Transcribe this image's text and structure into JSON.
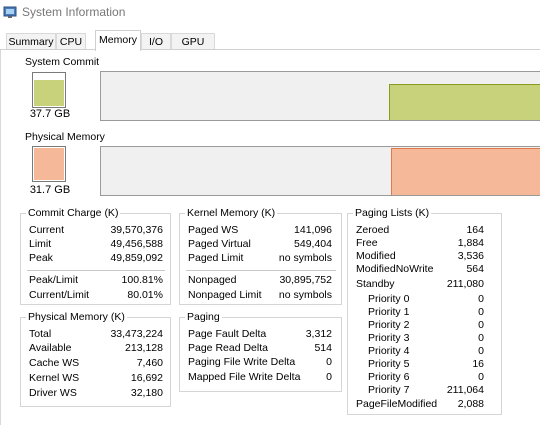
{
  "window": {
    "title": "System Information",
    "icon": "system-information-icon"
  },
  "tabs": [
    {
      "label": "Summary"
    },
    {
      "label": "CPU"
    },
    {
      "label": "Memory",
      "active": true
    },
    {
      "label": "I/O"
    },
    {
      "label": "GPU"
    }
  ],
  "system_commit": {
    "label": "System Commit",
    "value": "37.7 GB",
    "color": "#c8d27a",
    "line_color": "#8a9a1e"
  },
  "physical_memory_graph": {
    "label": "Physical Memory",
    "value": "31.7 GB",
    "color": "#f5b99a",
    "line_color": "#e07a4a"
  },
  "commit_charge": {
    "title": "Commit Charge (K)",
    "rows": [
      {
        "label": "Current",
        "value": "39,570,376"
      },
      {
        "label": "Limit",
        "value": "49,456,588"
      },
      {
        "label": "Peak",
        "value": "49,859,092"
      }
    ],
    "rows2": [
      {
        "label": "Peak/Limit",
        "value": "100.81%"
      },
      {
        "label": "Current/Limit",
        "value": "80.01%"
      }
    ]
  },
  "kernel_memory": {
    "title": "Kernel Memory (K)",
    "rows": [
      {
        "label": "Paged WS",
        "value": "141,096"
      },
      {
        "label": "Paged Virtual",
        "value": "549,404"
      },
      {
        "label": "Paged Limit",
        "value": "no symbols"
      }
    ],
    "rows2": [
      {
        "label": "Nonpaged",
        "value": "30,895,752"
      },
      {
        "label": "Nonpaged Limit",
        "value": "no symbols"
      }
    ]
  },
  "paging_lists": {
    "title": "Paging Lists (K)",
    "rows": [
      {
        "label": "Zeroed",
        "value": "164"
      },
      {
        "label": "Free",
        "value": "1,884"
      },
      {
        "label": "Modified",
        "value": "3,536"
      },
      {
        "label": "ModifiedNoWrite",
        "value": "564"
      },
      {
        "label": "Standby",
        "value": "211,080"
      },
      {
        "label": "Priority 0",
        "value": "0"
      },
      {
        "label": "Priority 1",
        "value": "0"
      },
      {
        "label": "Priority 2",
        "value": "0"
      },
      {
        "label": "Priority 3",
        "value": "0"
      },
      {
        "label": "Priority 4",
        "value": "0"
      },
      {
        "label": "Priority 5",
        "value": "16"
      },
      {
        "label": "Priority 6",
        "value": "0"
      },
      {
        "label": "Priority 7",
        "value": "211,064"
      },
      {
        "label": "PageFileModified",
        "value": "2,088"
      }
    ]
  },
  "physical_memory": {
    "title": "Physical Memory (K)",
    "rows": [
      {
        "label": "Total",
        "value": "33,473,224"
      },
      {
        "label": "Available",
        "value": "213,128"
      },
      {
        "label": "Cache WS",
        "value": "7,460"
      },
      {
        "label": "Kernel WS",
        "value": "16,692"
      },
      {
        "label": "Driver WS",
        "value": "32,180"
      }
    ]
  },
  "paging": {
    "title": "Paging",
    "rows": [
      {
        "label": "Page Fault Delta",
        "value": "3,312"
      },
      {
        "label": "Page Read Delta",
        "value": "514"
      },
      {
        "label": "Paging File Write Delta",
        "value": "0"
      },
      {
        "label": "Mapped File Write Delta",
        "value": "0"
      }
    ]
  }
}
